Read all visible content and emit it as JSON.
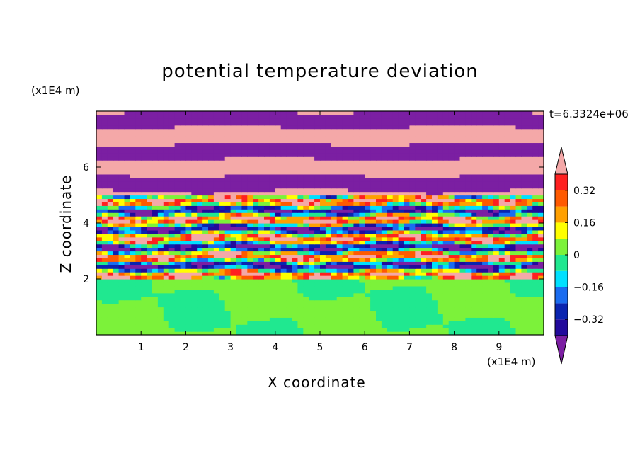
{
  "chart_data": {
    "type": "heatmap",
    "title": "potential temperature deviation",
    "xlabel": "X coordinate",
    "ylabel": "Z coordinate",
    "x_unit": "(x1E4 m)",
    "z_unit": "(x1E4 m)",
    "time_label": "t=6.3324e+06",
    "xlim": [
      0,
      10
    ],
    "zlim": [
      0,
      8
    ],
    "x_ticks": [
      1,
      2,
      3,
      4,
      5,
      6,
      7,
      8,
      9
    ],
    "z_ticks": [
      2,
      4,
      6
    ],
    "colorbar": {
      "levels": [
        -0.4,
        -0.32,
        -0.24,
        -0.16,
        -0.08,
        0,
        0.08,
        0.16,
        0.24,
        0.32,
        0.4
      ],
      "tick_labels": [
        "0.32",
        "0.16",
        "0",
        "−0.16",
        "−0.32"
      ],
      "tick_values": [
        0.32,
        0.16,
        0,
        -0.16,
        -0.32
      ],
      "colors_low_to_high": [
        "#7b1fa2",
        "#220a9c",
        "#0a24b0",
        "#1a6cf0",
        "#00e0ff",
        "#20e890",
        "#7cf23a",
        "#ffff00",
        "#ffa000",
        "#ff5a00",
        "#ff2020",
        "#f4a8a8"
      ],
      "extend": "both"
    },
    "regions": [
      {
        "z_range": [
          0,
          2
        ],
        "dominant_values": [
          0,
          0.04
        ],
        "note": "smooth near-zero deviation"
      },
      {
        "z_range": [
          2,
          5
        ],
        "dominant_values": [
          -0.4,
          0.4
        ],
        "note": "turbulent mixed layers"
      },
      {
        "z_range": [
          5,
          8
        ],
        "dominant_values": [
          -0.45,
          0.45
        ],
        "note": "alternating purple/pink bands"
      }
    ]
  }
}
